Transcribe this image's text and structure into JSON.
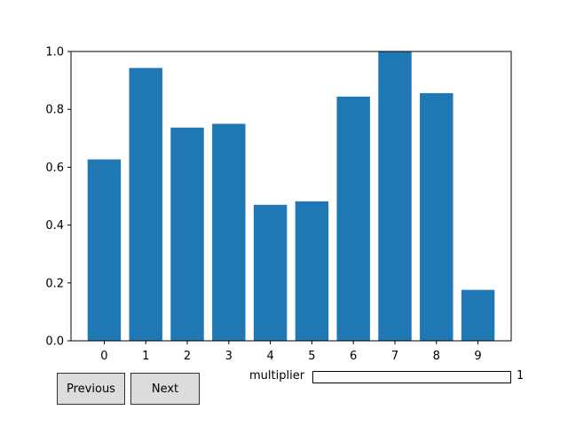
{
  "chart_data": {
    "type": "bar",
    "categories": [
      "0",
      "1",
      "2",
      "3",
      "4",
      "5",
      "6",
      "7",
      "8",
      "9"
    ],
    "values": [
      0.627,
      0.943,
      0.737,
      0.75,
      0.47,
      0.482,
      0.844,
      1.0,
      0.856,
      0.176
    ],
    "ylim": [
      0,
      1.0
    ],
    "yticks": [
      "0.0",
      "0.2",
      "0.4",
      "0.6",
      "0.8",
      "1.0"
    ],
    "ytick_values": [
      0,
      0.2,
      0.4,
      0.6,
      0.8,
      1.0
    ],
    "bar_color": "#1f77b4",
    "title": "",
    "xlabel": "",
    "ylabel": "",
    "grid": false
  },
  "controls": {
    "previous_label": "Previous",
    "next_label": "Next",
    "slider_label": "multiplier",
    "slider_value": "1",
    "slider_fraction": 0,
    "slider_fill_color": "#1f77b4"
  }
}
